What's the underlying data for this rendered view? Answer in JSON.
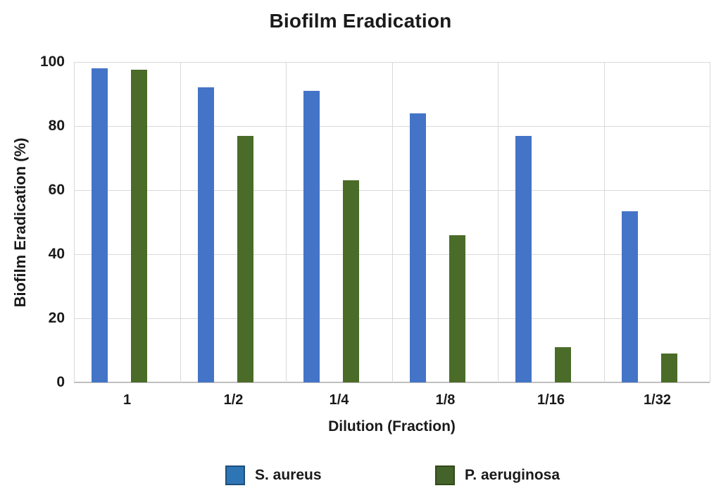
{
  "chart_data": {
    "type": "bar",
    "title": "Biofilm Eradication",
    "xlabel": "Dilution (Fraction)",
    "ylabel": "Biofilm Eradication (%)",
    "categories": [
      "1",
      "1/2",
      "1/4",
      "1/8",
      "1/16",
      "1/32"
    ],
    "series": [
      {
        "name": "S. aureus",
        "color": "#4474C8",
        "legend_fill": "#2E75B6",
        "legend_border": "#1F4E79",
        "values": [
          98,
          92,
          91,
          84,
          77,
          53.5
        ]
      },
      {
        "name": "P. aeruginosa",
        "color": "#4A6C28",
        "legend_fill": "#44632A",
        "legend_border": "#33491B",
        "values": [
          97.5,
          77,
          63,
          46,
          11,
          9
        ]
      }
    ],
    "ylim": [
      0,
      100
    ],
    "yticks": [
      0,
      20,
      40,
      60,
      80,
      100
    ],
    "grid": true,
    "legend_position": "bottom",
    "gridline_color": "#d9d9d9",
    "axis_color": "#bfbfbf",
    "background_color": "#ffffff"
  }
}
